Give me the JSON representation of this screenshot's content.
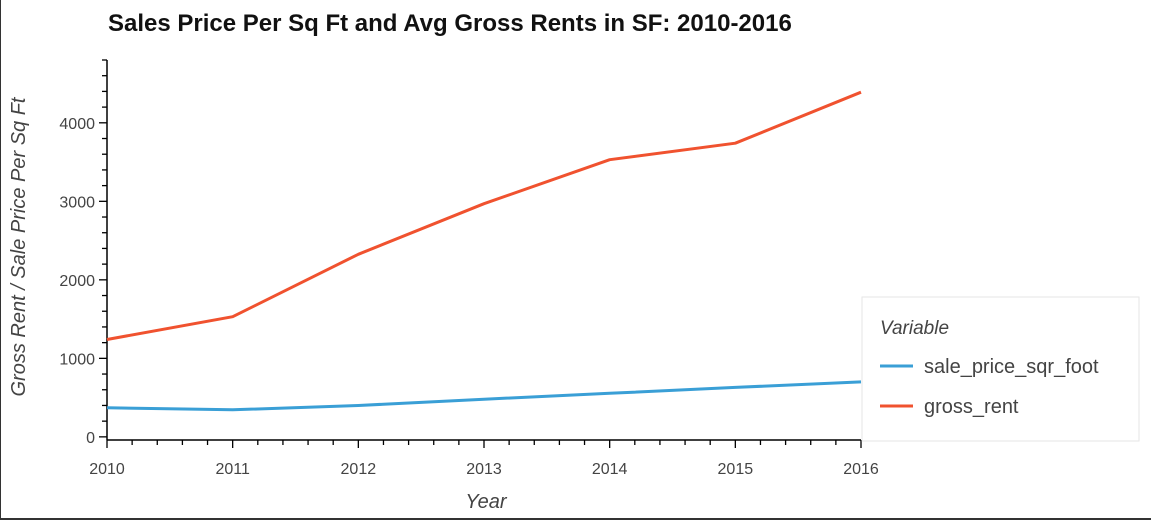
{
  "chart_data": {
    "type": "line",
    "title": "Sales Price Per Sq Ft and Avg Gross Rents in SF: 2010-2016",
    "xlabel": "Year",
    "ylabel": "Gross Rent / Sale Price Per Sq Ft",
    "x": [
      2010,
      2011,
      2012,
      2013,
      2014,
      2015,
      2016
    ],
    "xlim": [
      2010,
      2016
    ],
    "ylim": [
      -40,
      4800
    ],
    "yticks": [
      0,
      1000,
      2000,
      3000,
      4000
    ],
    "xticks": [
      "2010",
      "2011",
      "2012",
      "2013",
      "2014",
      "2015",
      "2016"
    ],
    "grid": false,
    "legend": {
      "title": "Variable",
      "position": "right"
    },
    "series": [
      {
        "name": "sale_price_sqr_foot",
        "color": "#3a9fd6",
        "values": [
          370,
          345,
          400,
          480,
          555,
          630,
          700
        ]
      },
      {
        "name": "gross_rent",
        "color": "#f0522f",
        "values": [
          1240,
          1530,
          2325,
          2970,
          3530,
          3740,
          4390
        ]
      }
    ]
  }
}
